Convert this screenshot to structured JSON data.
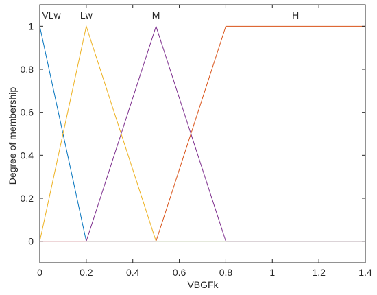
{
  "chart_data": {
    "type": "line",
    "xlabel": "VBGFk",
    "ylabel": "Degree of membership",
    "xlim": [
      0,
      1.4
    ],
    "ylim": [
      -0.1,
      1.1
    ],
    "xticks": [
      0,
      0.2,
      0.4,
      0.6,
      0.8,
      1,
      1.2,
      1.4
    ],
    "yticks": [
      0,
      0.2,
      0.4,
      0.6,
      0.8,
      1
    ],
    "xtick_labels": [
      "0",
      "0.2",
      "0.4",
      "0.6",
      "0.8",
      "1",
      "1.2",
      "1.4"
    ],
    "ytick_labels": [
      "0",
      "0.2",
      "0.4",
      "0.6",
      "0.8",
      "1"
    ],
    "grid": false,
    "series": [
      {
        "name": "VLw",
        "color": "#0072BD",
        "x": [
          0,
          0.2,
          1.4
        ],
        "y": [
          1,
          0,
          0
        ],
        "label_x": 0.05
      },
      {
        "name": "Lw",
        "color": "#EDB120",
        "x": [
          0,
          0.2,
          0.5,
          1.4
        ],
        "y": [
          0,
          1,
          0,
          0
        ],
        "label_x": 0.2
      },
      {
        "name": "M",
        "color": "#7E2F8E",
        "x": [
          0,
          0.2,
          0.5,
          0.8,
          1.4
        ],
        "y": [
          0,
          0,
          1,
          0,
          0
        ],
        "label_x": 0.5
      },
      {
        "name": "H",
        "color": "#D95319",
        "x": [
          0,
          0.5,
          0.8,
          1.4
        ],
        "y": [
          0,
          0,
          1,
          1
        ],
        "label_x": 1.1
      }
    ]
  }
}
